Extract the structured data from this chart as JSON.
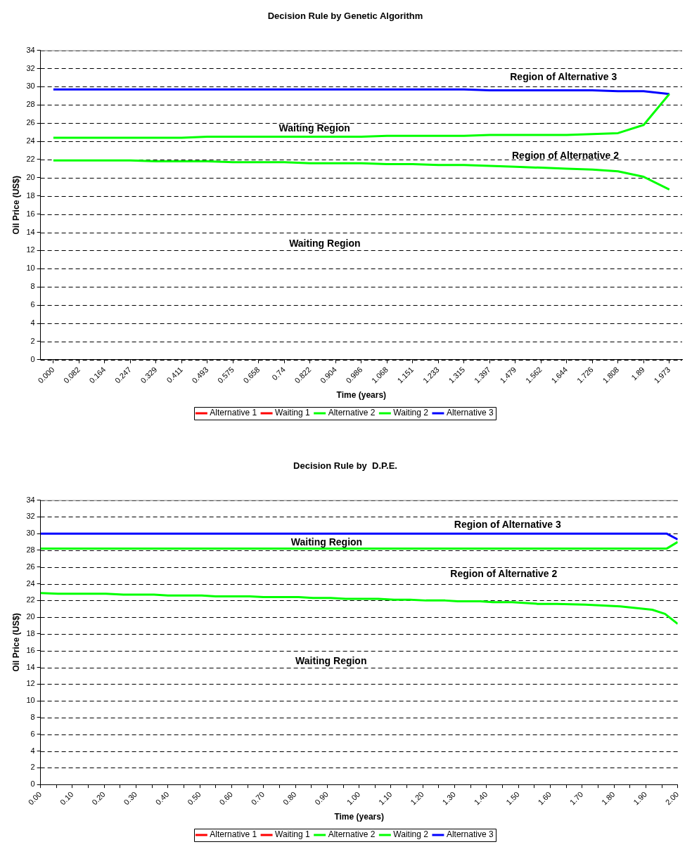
{
  "chart_data": [
    {
      "type": "line",
      "title": "Decision Rule by Genetic Algorithm",
      "xlabel": "Time (years)",
      "ylabel": "Oil Price (US$)",
      "categories": [
        "0.000",
        "0.082",
        "0.164",
        "0.247",
        "0.329",
        "0.411",
        "0.493",
        "0.575",
        "0.658",
        "0.74",
        "0.822",
        "0.904",
        "0.986",
        "1.068",
        "1.151",
        "1.233",
        "1.315",
        "1.397",
        "1.479",
        "1.562",
        "1.644",
        "1.726",
        "1.808",
        "1.89",
        "1.973"
      ],
      "series": [
        {
          "name": "Alternative 1",
          "color": "#ff0000",
          "values": [
            null,
            null,
            null,
            null,
            null,
            null,
            null,
            null,
            null,
            null,
            null,
            null,
            null,
            null,
            null,
            null,
            null,
            null,
            null,
            null,
            null,
            null,
            null,
            null,
            null
          ]
        },
        {
          "name": "Waiting 1",
          "color": "#ff0000",
          "values": [
            null,
            null,
            null,
            null,
            null,
            null,
            null,
            null,
            null,
            null,
            null,
            null,
            null,
            null,
            null,
            null,
            null,
            null,
            null,
            null,
            null,
            null,
            null,
            null,
            null
          ]
        },
        {
          "name": "Alternative 2",
          "color": "#00ff00",
          "values": [
            21.9,
            21.9,
            21.9,
            21.9,
            21.8,
            21.8,
            21.8,
            21.7,
            21.7,
            21.7,
            21.6,
            21.6,
            21.6,
            21.5,
            21.5,
            21.4,
            21.4,
            21.3,
            21.2,
            21.1,
            21.0,
            20.9,
            20.7,
            20.1,
            18.7
          ]
        },
        {
          "name": "Waiting 2",
          "color": "#00ff00",
          "values": [
            24.4,
            24.4,
            24.4,
            24.4,
            24.4,
            24.4,
            24.5,
            24.5,
            24.5,
            24.5,
            24.5,
            24.5,
            24.5,
            24.6,
            24.6,
            24.6,
            24.6,
            24.7,
            24.7,
            24.7,
            24.7,
            24.8,
            24.9,
            25.8,
            29.2
          ]
        },
        {
          "name": "Alternative 3",
          "color": "#0000ff",
          "values": [
            29.7,
            29.7,
            29.7,
            29.7,
            29.7,
            29.7,
            29.7,
            29.7,
            29.7,
            29.7,
            29.7,
            29.7,
            29.7,
            29.7,
            29.7,
            29.7,
            29.7,
            29.6,
            29.6,
            29.6,
            29.6,
            29.6,
            29.5,
            29.5,
            29.2
          ]
        }
      ],
      "ylim": [
        0,
        34
      ],
      "yticks": [
        0,
        2,
        4,
        6,
        8,
        10,
        12,
        14,
        16,
        18,
        20,
        22,
        24,
        26,
        28,
        30,
        32,
        34
      ],
      "grid": "y",
      "legend": "bottom",
      "marker": "none",
      "line_style": "solid",
      "annotations": [
        "Region of Alternative 3",
        "Waiting Region",
        "Region of Alternative 2",
        "Waiting Region"
      ]
    },
    {
      "type": "line",
      "title": "Decision Rule by  D.P.E.",
      "xlabel": "Time (years)",
      "ylabel": "Oil Price (US$)",
      "series": [
        {
          "name": "Alternative 1",
          "color": "#ff0000"
        },
        {
          "name": "Waiting 1",
          "color": "#ff0000"
        },
        {
          "name": "Alternative 2",
          "color": "#00ff00",
          "x": [
            0,
            0.055,
            0.205,
            0.26,
            0.356,
            0.4,
            0.506,
            0.55,
            0.657,
            0.7,
            0.81,
            0.855,
            0.91,
            0.958,
            1.06,
            1.11,
            1.16,
            1.21,
            1.27,
            1.31,
            1.38,
            1.42,
            1.48,
            1.56,
            1.62,
            1.71,
            1.82,
            1.92,
            1.96,
            2.0
          ],
          "values": [
            22.9,
            22.8,
            22.8,
            22.7,
            22.7,
            22.6,
            22.6,
            22.5,
            22.5,
            22.4,
            22.4,
            22.3,
            22.3,
            22.2,
            22.2,
            22.1,
            22.1,
            22.0,
            22.0,
            21.9,
            21.9,
            21.8,
            21.8,
            21.6,
            21.6,
            21.5,
            21.3,
            20.9,
            20.4,
            19.2
          ]
        },
        {
          "name": "Waiting 2",
          "color": "#00ff00",
          "x": [
            0,
            1.965,
            2.0
          ],
          "values": [
            28.2,
            28.2,
            29.0
          ]
        },
        {
          "name": "Alternative 3",
          "color": "#0000ff",
          "x": [
            0,
            1.965,
            2.0
          ],
          "values": [
            30.0,
            30.0,
            29.3
          ]
        }
      ],
      "xlim": [
        0,
        2
      ],
      "xticks": [
        {
          "value": 0,
          "label": "0.00"
        },
        {
          "value": 0.05,
          "label": null
        },
        {
          "value": 0.1,
          "label": "0.10"
        },
        {
          "value": 0.15,
          "label": null
        },
        {
          "value": 0.2,
          "label": "0.20"
        },
        {
          "value": 0.25,
          "label": null
        },
        {
          "value": 0.3,
          "label": "0.30"
        },
        {
          "value": 0.35,
          "label": null
        },
        {
          "value": 0.4,
          "label": "0.40"
        },
        {
          "value": 0.45,
          "label": null
        },
        {
          "value": 0.5,
          "label": "0.50"
        },
        {
          "value": 0.55,
          "label": null
        },
        {
          "value": 0.6,
          "label": "0.60"
        },
        {
          "value": 0.65,
          "label": null
        },
        {
          "value": 0.7,
          "label": "0.70"
        },
        {
          "value": 0.75,
          "label": null
        },
        {
          "value": 0.8,
          "label": "0.80"
        },
        {
          "value": 0.85,
          "label": null
        },
        {
          "value": 0.9,
          "label": "0.90"
        },
        {
          "value": 0.95,
          "label": null
        },
        {
          "value": 1.0,
          "label": "1.00"
        },
        {
          "value": 1.05,
          "label": null
        },
        {
          "value": 1.1,
          "label": "1.10"
        },
        {
          "value": 1.15,
          "label": null
        },
        {
          "value": 1.2,
          "label": "1.20"
        },
        {
          "value": 1.25,
          "label": null
        },
        {
          "value": 1.3,
          "label": "1.30"
        },
        {
          "value": 1.35,
          "label": null
        },
        {
          "value": 1.4,
          "label": "1.40"
        },
        {
          "value": 1.45,
          "label": null
        },
        {
          "value": 1.5,
          "label": "1.50"
        },
        {
          "value": 1.55,
          "label": null
        },
        {
          "value": 1.6,
          "label": "1.60"
        },
        {
          "value": 1.65,
          "label": null
        },
        {
          "value": 1.7,
          "label": "1.70"
        },
        {
          "value": 1.75,
          "label": null
        },
        {
          "value": 1.8,
          "label": "1.80"
        },
        {
          "value": 1.85,
          "label": null
        },
        {
          "value": 1.9,
          "label": "1.90"
        },
        {
          "value": 1.95,
          "label": null
        },
        {
          "value": 2.0,
          "label": "2.00"
        }
      ],
      "ylim": [
        0,
        34
      ],
      "yticks": [
        0,
        2,
        4,
        6,
        8,
        10,
        12,
        14,
        16,
        18,
        20,
        22,
        24,
        26,
        28,
        30,
        32,
        34
      ],
      "grid": "y",
      "legend": "bottom",
      "marker": "none",
      "line_style": "solid",
      "annotations": [
        "Region of Alternative 3",
        "Waiting Region",
        "Region of Alternative 2",
        "Waiting Region"
      ]
    }
  ]
}
